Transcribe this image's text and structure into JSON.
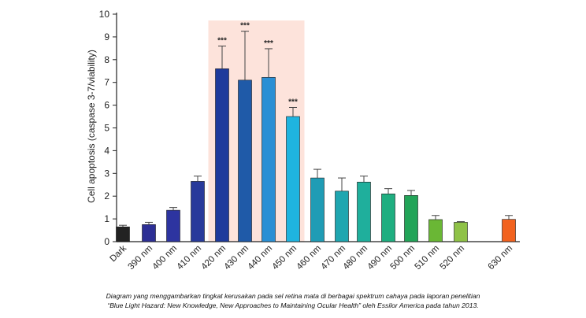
{
  "chart_data": {
    "type": "bar",
    "title": "",
    "xlabel": "",
    "ylabel": "Cell apoptosis (caspase 3-7/viability)",
    "ylim": [
      0,
      10
    ],
    "yticks": [
      "0",
      "1",
      "2",
      "3",
      "4",
      "5",
      "6",
      "7",
      "8",
      "9",
      "10"
    ],
    "grid": false,
    "highlight": {
      "from": "420 nm",
      "to": "450 nm",
      "color": "#fde3db"
    },
    "categories": [
      "Dark",
      "390 nm",
      "400 nm",
      "410 nm",
      "420 nm",
      "430 nm",
      "440 nm",
      "450 nm",
      "460 nm",
      "470 nm",
      "480 nm",
      "490 nm",
      "500 nm",
      "510 nm",
      "520 nm",
      "630 nm"
    ],
    "values": [
      0.65,
      0.75,
      1.38,
      2.65,
      7.6,
      7.1,
      7.22,
      5.5,
      2.8,
      2.22,
      2.62,
      2.1,
      2.03,
      0.97,
      0.85,
      0.98
    ],
    "error_upper": [
      0.72,
      0.85,
      1.5,
      2.88,
      8.6,
      9.25,
      8.48,
      5.9,
      3.18,
      2.8,
      2.88,
      2.33,
      2.25,
      1.15,
      0.88,
      1.15
    ],
    "annotations": [
      "",
      "",
      "",
      "",
      "***",
      "***",
      "***",
      "***",
      "",
      "",
      "",
      "",
      "",
      "",
      "",
      ""
    ],
    "colors": [
      "#222222",
      "#2d2f95",
      "#2d34a0",
      "#283a9b",
      "#1e3a9c",
      "#1f5aa8",
      "#2a8fd4",
      "#1fb4df",
      "#1f9cb5",
      "#1fa6b0",
      "#1faf9c",
      "#1fae80",
      "#22a458",
      "#6ab735",
      "#8fc247",
      "#f2621f"
    ]
  },
  "caption": {
    "line1": "Diagram yang menggambarkan tingkat kerusakan pada sel retina mata di berbagai spektrum cahaya pada laporan penelitian",
    "line2": "“Blue Light Hazard: New Knowledge, New Approaches to Maintaining Ocular Health” oleh Essilor America pada tahun 2013."
  }
}
